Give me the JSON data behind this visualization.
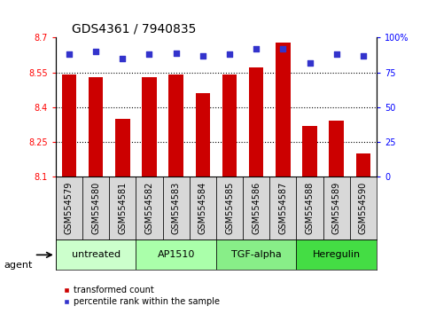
{
  "title": "GDS4361 / 7940835",
  "samples": [
    "GSM554579",
    "GSM554580",
    "GSM554581",
    "GSM554582",
    "GSM554583",
    "GSM554584",
    "GSM554585",
    "GSM554586",
    "GSM554587",
    "GSM554588",
    "GSM554589",
    "GSM554590"
  ],
  "bar_values": [
    8.54,
    8.53,
    8.35,
    8.53,
    8.54,
    8.46,
    8.54,
    8.57,
    8.68,
    8.32,
    8.34,
    8.2
  ],
  "percentile_values": [
    88,
    90,
    85,
    88,
    89,
    87,
    88,
    92,
    92,
    82,
    88,
    87
  ],
  "y_min": 8.1,
  "y_max": 8.7,
  "y_ticks": [
    8.1,
    8.25,
    8.4,
    8.55,
    8.7
  ],
  "y_tick_labels": [
    "8.1",
    "8.25",
    "8.4",
    "8.55",
    "8.7"
  ],
  "right_y_ticks": [
    0,
    25,
    50,
    75,
    100
  ],
  "right_y_labels": [
    "0",
    "25",
    "50",
    "75",
    "100%"
  ],
  "bar_color": "#cc0000",
  "dot_color": "#3333cc",
  "bar_base": 8.1,
  "groups": [
    {
      "label": "untreated",
      "start": 0,
      "end": 3,
      "color": "#ccffcc"
    },
    {
      "label": "AP1510",
      "start": 3,
      "end": 6,
      "color": "#aaffaa"
    },
    {
      "label": "TGF-alpha",
      "start": 6,
      "end": 9,
      "color": "#88ee88"
    },
    {
      "label": "Heregulin",
      "start": 9,
      "end": 12,
      "color": "#44dd44"
    }
  ],
  "agent_label": "agent",
  "legend_bar_label": "transformed count",
  "legend_dot_label": "percentile rank within the sample",
  "title_fontsize": 10,
  "tick_fontsize": 7,
  "sample_fontsize": 7,
  "label_fontsize": 8,
  "group_fontsize": 8
}
